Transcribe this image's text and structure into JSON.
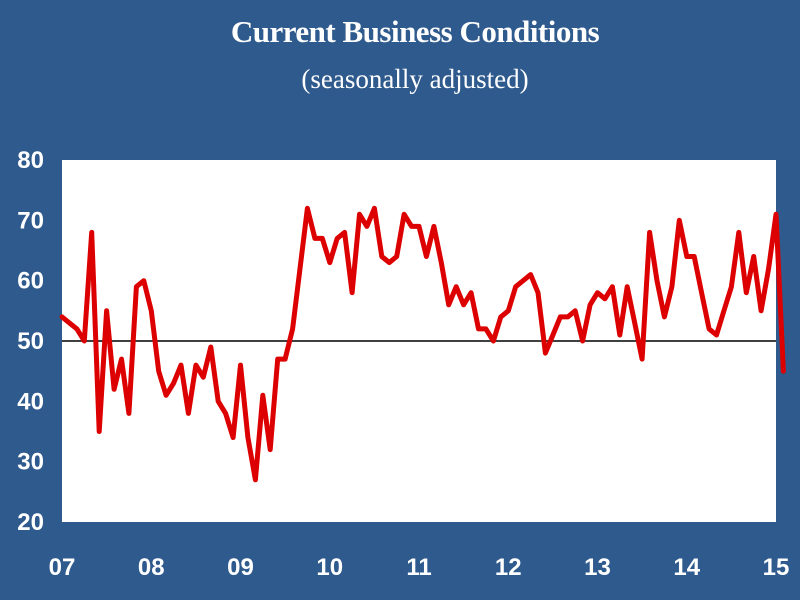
{
  "chart_data": {
    "type": "line",
    "title": "Current  Business Conditions",
    "subtitle": "(seasonally adjusted)",
    "xlabel": "",
    "ylabel": "",
    "ylim": [
      20,
      80
    ],
    "yticks": [
      20,
      30,
      40,
      50,
      60,
      70,
      80
    ],
    "xlim": [
      2007.0,
      2015.0
    ],
    "xticks": [
      {
        "label": "07",
        "value": 2007
      },
      {
        "label": "08",
        "value": 2008
      },
      {
        "label": "09",
        "value": 2009
      },
      {
        "label": "10",
        "value": 2010
      },
      {
        "label": "11",
        "value": 2011
      },
      {
        "label": "12",
        "value": 2012
      },
      {
        "label": "13",
        "value": 2013
      },
      {
        "label": "14",
        "value": 2014
      },
      {
        "label": "15",
        "value": 2015
      }
    ],
    "reference_line": 50,
    "grid": false,
    "colors": {
      "line": "#DD0000",
      "background": "#2F5A8D",
      "plot_bg": "#FFFFFF",
      "reference": "#000000"
    },
    "series": [
      {
        "start_year": 2007.0,
        "step_months": 1,
        "values": [
          54,
          53,
          52,
          50,
          68,
          35,
          55,
          42,
          47,
          38,
          59,
          60,
          55,
          45,
          41,
          43,
          46,
          38,
          46,
          44,
          49,
          40,
          38,
          34,
          46,
          34,
          27,
          41,
          32,
          47,
          47,
          52,
          62,
          72,
          67,
          67,
          63,
          67,
          68,
          58,
          71,
          69,
          72,
          64,
          63,
          64,
          71,
          69,
          69,
          64,
          69,
          63,
          56,
          59,
          56,
          58,
          52,
          52,
          50,
          54,
          55,
          59,
          60,
          61,
          58,
          48,
          51,
          54,
          54,
          55,
          50,
          56,
          58,
          57,
          59,
          51,
          59,
          53,
          47,
          68,
          60,
          54,
          59,
          70,
          64,
          64,
          58,
          52,
          51,
          55,
          59,
          68,
          58,
          64,
          55,
          62,
          71,
          45
        ]
      }
    ]
  }
}
